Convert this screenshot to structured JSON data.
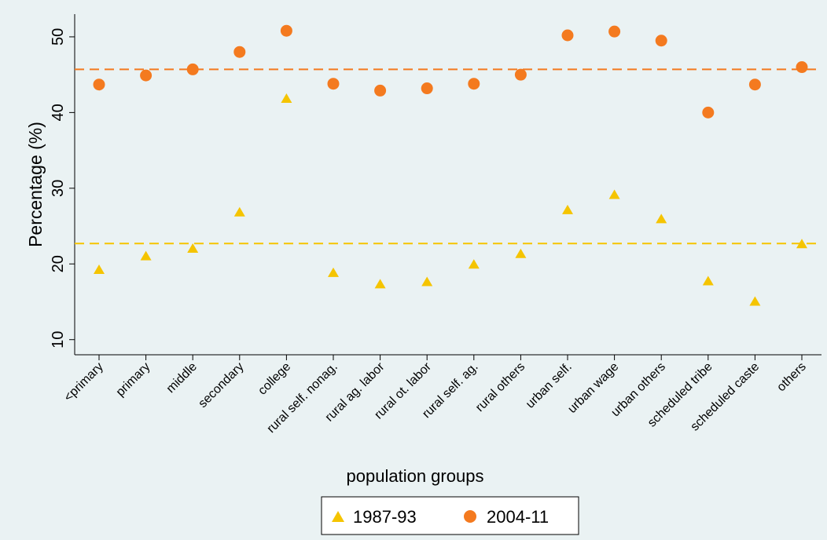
{
  "chart_data": {
    "type": "scatter",
    "title": "",
    "xlabel": "population groups",
    "ylabel": "Percentage (%)",
    "ylim": [
      8,
      53
    ],
    "yticks": [
      10,
      20,
      30,
      40,
      50
    ],
    "grid": false,
    "legend_position": "bottom",
    "categories": [
      "<primary",
      "primary",
      "middle",
      "secondary",
      "college",
      "rural self. nonag.",
      "rural ag. labor",
      "rural ot. labor",
      "rural self. ag.",
      "rural others",
      "urban self.",
      "urban wage",
      "urban others",
      "scheduled tribe",
      "scheduled caste",
      "others"
    ],
    "series": [
      {
        "name": "1987-93",
        "marker": "triangle",
        "color": "#f5c400",
        "values": [
          19.3,
          21.1,
          22.1,
          26.9,
          41.9,
          18.9,
          17.4,
          17.7,
          20.0,
          21.4,
          27.2,
          29.2,
          26.0,
          17.8,
          15.1,
          22.7
        ],
        "reference_line": 22.7
      },
      {
        "name": "2004-11",
        "marker": "circle",
        "color": "#f47a1f",
        "values": [
          43.7,
          44.9,
          45.7,
          48.0,
          50.8,
          43.8,
          42.9,
          43.2,
          43.8,
          45.0,
          50.2,
          50.7,
          49.5,
          40.0,
          43.7,
          46.0
        ],
        "reference_line": 45.7
      }
    ]
  }
}
